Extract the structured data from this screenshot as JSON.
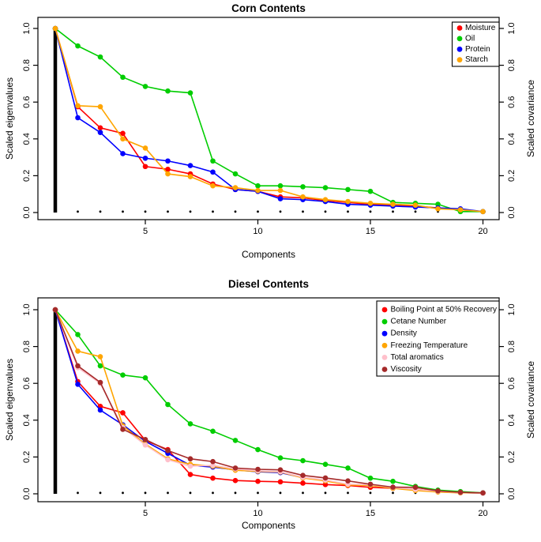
{
  "page": {
    "background": "#ffffff",
    "text_color": "#000000"
  },
  "chart_data": [
    {
      "type": "line",
      "title": "Corn Contents",
      "xlabel": "Components",
      "ylabel_left": "Scaled eigenvalues",
      "ylabel_right": "Scaled covariance",
      "legend_position": "topright",
      "grid": false,
      "x_range": [
        1,
        20
      ],
      "y_range": [
        0,
        1
      ],
      "x_ticks": [
        5,
        10,
        15,
        20
      ],
      "y_ticks": [
        0,
        0.2,
        0.4,
        0.6,
        0.8,
        1
      ],
      "categories": [
        1,
        2,
        3,
        4,
        5,
        6,
        7,
        8,
        9,
        10,
        11,
        12,
        13,
        14,
        15,
        16,
        17,
        18,
        19,
        20
      ],
      "eigenvalues": {
        "color": "#000000",
        "values": [
          1.0,
          0.005,
          0.005,
          0.005,
          0.005,
          0.005,
          0.005,
          0.005,
          0.005,
          0.005,
          0.005,
          0.005,
          0.005,
          0.005,
          0.005,
          0.005,
          0.005,
          0.005,
          0.005,
          0.005
        ]
      },
      "series": [
        {
          "name": "Moisture",
          "color": "#FF0000",
          "values": [
            1.0,
            0.575,
            0.46,
            0.43,
            0.25,
            0.235,
            0.21,
            0.155,
            0.125,
            0.115,
            0.085,
            0.08,
            0.065,
            0.055,
            0.045,
            0.04,
            0.035,
            0.025,
            0.015,
            0.005
          ]
        },
        {
          "name": "Oil",
          "color": "#00CD00",
          "values": [
            1.0,
            0.905,
            0.845,
            0.735,
            0.685,
            0.66,
            0.65,
            0.28,
            0.21,
            0.145,
            0.145,
            0.14,
            0.135,
            0.125,
            0.115,
            0.055,
            0.05,
            0.045,
            0.005,
            0.005
          ]
        },
        {
          "name": "Protein",
          "color": "#0000FF",
          "values": [
            1.0,
            0.515,
            0.435,
            0.32,
            0.295,
            0.28,
            0.255,
            0.22,
            0.125,
            0.115,
            0.075,
            0.07,
            0.06,
            0.045,
            0.04,
            0.035,
            0.03,
            0.025,
            0.02,
            0.005
          ]
        },
        {
          "name": "Starch",
          "color": "#FFA500",
          "values": [
            1.0,
            0.58,
            0.575,
            0.4,
            0.35,
            0.21,
            0.195,
            0.145,
            0.135,
            0.12,
            0.12,
            0.085,
            0.07,
            0.06,
            0.05,
            0.045,
            0.04,
            0.02,
            0.015,
            0.005
          ]
        }
      ]
    },
    {
      "type": "line",
      "title": "Diesel Contents",
      "xlabel": "Components",
      "ylabel_left": "Scaled eigenvalues",
      "ylabel_right": "Scaled covariance",
      "legend_position": "topright",
      "grid": false,
      "x_range": [
        1,
        20
      ],
      "y_range": [
        0,
        1
      ],
      "x_ticks": [
        5,
        10,
        15,
        20
      ],
      "y_ticks": [
        0,
        0.2,
        0.4,
        0.6,
        0.8,
        1
      ],
      "categories": [
        1,
        2,
        3,
        4,
        5,
        6,
        7,
        8,
        9,
        10,
        11,
        12,
        13,
        14,
        15,
        16,
        17,
        18,
        19,
        20
      ],
      "eigenvalues": {
        "color": "#000000",
        "values": [
          1.0,
          0.005,
          0.005,
          0.005,
          0.005,
          0.005,
          0.005,
          0.005,
          0.005,
          0.005,
          0.005,
          0.005,
          0.005,
          0.005,
          0.005,
          0.005,
          0.005,
          0.005,
          0.005,
          0.005
        ]
      },
      "series": [
        {
          "name": "Boiling Point at 50% Recovery",
          "color": "#FF0000",
          "values": [
            1.0,
            0.61,
            0.475,
            0.44,
            0.29,
            0.24,
            0.105,
            0.085,
            0.072,
            0.068,
            0.065,
            0.058,
            0.05,
            0.045,
            0.035,
            0.03,
            0.025,
            0.012,
            0.006,
            0.004
          ]
        },
        {
          "name": "Cetane Number",
          "color": "#00CD00",
          "values": [
            1.0,
            0.865,
            0.695,
            0.645,
            0.63,
            0.485,
            0.38,
            0.34,
            0.29,
            0.24,
            0.195,
            0.18,
            0.16,
            0.14,
            0.085,
            0.068,
            0.04,
            0.02,
            0.012,
            0.005
          ]
        },
        {
          "name": "Density",
          "color": "#0000FF",
          "values": [
            1.0,
            0.595,
            0.455,
            0.375,
            0.285,
            0.22,
            0.155,
            0.145,
            0.13,
            0.12,
            0.115,
            0.088,
            0.072,
            0.05,
            0.048,
            0.032,
            0.022,
            0.012,
            0.006,
            0.004
          ]
        },
        {
          "name": "Freezing Temperature",
          "color": "#FFA500",
          "values": [
            1.0,
            0.775,
            0.745,
            0.37,
            0.27,
            0.19,
            0.16,
            0.15,
            0.128,
            0.122,
            0.118,
            0.086,
            0.07,
            0.048,
            0.046,
            0.03,
            0.018,
            0.01,
            0.005,
            0.004
          ]
        },
        {
          "name": "Total aromatics",
          "color": "#FFC0CB",
          "values": [
            1.0,
            0.685,
            0.6,
            0.36,
            0.265,
            0.185,
            0.15,
            0.155,
            0.135,
            0.125,
            0.12,
            0.09,
            0.075,
            0.052,
            0.05,
            0.034,
            0.024,
            0.014,
            0.007,
            0.004
          ]
        },
        {
          "name": "Viscosity",
          "color": "#A52A2A",
          "values": [
            1.0,
            0.695,
            0.605,
            0.35,
            0.295,
            0.235,
            0.19,
            0.175,
            0.14,
            0.133,
            0.13,
            0.1,
            0.086,
            0.07,
            0.052,
            0.036,
            0.035,
            0.016,
            0.008,
            0.005
          ]
        }
      ]
    }
  ]
}
